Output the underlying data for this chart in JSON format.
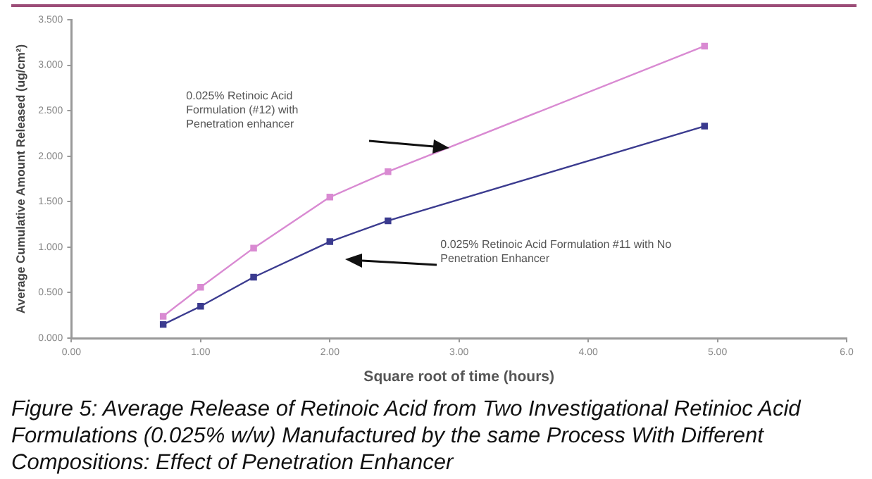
{
  "chart_data": {
    "type": "line",
    "xlabel": "Square root of time (hours)",
    "ylabel": "Average Cumulative Amount Released (ug/cm²)",
    "x": [
      0.71,
      1.0,
      1.41,
      2.0,
      2.45,
      4.9
    ],
    "series": [
      {
        "color": "#d98ad2",
        "values": [
          0.24,
          0.56,
          0.99,
          1.55,
          1.83,
          3.21
        ]
      },
      {
        "color": "#3b3b8f",
        "values": [
          0.15,
          0.35,
          0.67,
          1.06,
          1.29,
          2.33
        ]
      }
    ],
    "xlim": [
      0,
      6
    ],
    "xticks": [
      {
        "value": 0,
        "label": "0.00"
      },
      {
        "value": 1,
        "label": "1.00"
      },
      {
        "value": 2,
        "label": "2.00"
      },
      {
        "value": 3,
        "label": "3.00"
      },
      {
        "value": 4,
        "label": "4.00"
      },
      {
        "value": 5,
        "label": "5.00"
      },
      {
        "value": 6,
        "label": "6.0"
      }
    ],
    "ylim": [
      0,
      3.5
    ],
    "yticks": [
      {
        "value": 0,
        "label": "0.000"
      },
      {
        "value": 0.5,
        "label": "0.500"
      },
      {
        "value": 1,
        "label": "1.000"
      },
      {
        "value": 1.5,
        "label": "1.500"
      },
      {
        "value": 2,
        "label": "2.000"
      },
      {
        "value": 2.5,
        "label": "2.500"
      },
      {
        "value": 3,
        "label": "3.000"
      },
      {
        "value": 3.5,
        "label": "3.500"
      }
    ],
    "grid": false,
    "legend": false,
    "marker": "square",
    "annotations": [
      "0.025% Retinoic Acid Formulation (#12) with Penetration enhancer",
      "0.025% Retinoic Acid Formulation #11 with No Penetration Enhancer",
      "Figure 5: Average Release of Retinoic Acid from Two Investigational Retinioc Acid Formulations (0.025% w/w) Manufactured by the same Process With Different Compositions: Effect of Penetration Enhancer"
    ]
  }
}
